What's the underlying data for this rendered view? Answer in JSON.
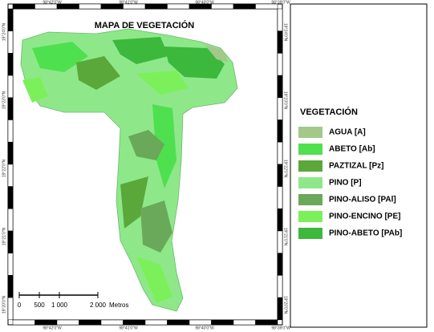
{
  "map": {
    "title": "MAPA DE VEGETACIÓN",
    "coordinates": {
      "top": [
        "98°42'0\"W",
        "98°41'0\"W",
        "98°40'0\"W",
        "98°39'0\"W"
      ],
      "bottom": [
        "98°42'0\"W",
        "98°41'0\"W",
        "98°40'0\"W",
        "98°39'0\"W"
      ],
      "left": [
        "19°24'0\"N",
        "19°23'0\"N",
        "19°22'0\"N",
        "19°21'0\"N",
        "19°20'0\"N"
      ],
      "right": [
        "19°24'0\"N",
        "19°23'0\"N",
        "19°22'0\"N",
        "19°21'0\"N",
        "19°20'0\"N"
      ]
    },
    "scale": {
      "labels": [
        "0",
        "500",
        "1 000",
        "2 000"
      ],
      "unit": "Metros"
    }
  },
  "legend": {
    "title": "VEGETACIÓN",
    "items": [
      {
        "label": "AGUA [A]",
        "color": "#a3c88a"
      },
      {
        "label": "ABETO [Ab]",
        "color": "#4fe04f"
      },
      {
        "label": "PAZTIZAL [Pz]",
        "color": "#5aa83a"
      },
      {
        "label": "PINO [P]",
        "color": "#8ee88a"
      },
      {
        "label": "PINO-ALISO [PAl]",
        "color": "#6aa85a"
      },
      {
        "label": "PINO-ENCINO [PE]",
        "color": "#7cf05a"
      },
      {
        "label": "PINO-ABETO [PAb]",
        "color": "#3cb83c"
      }
    ]
  }
}
